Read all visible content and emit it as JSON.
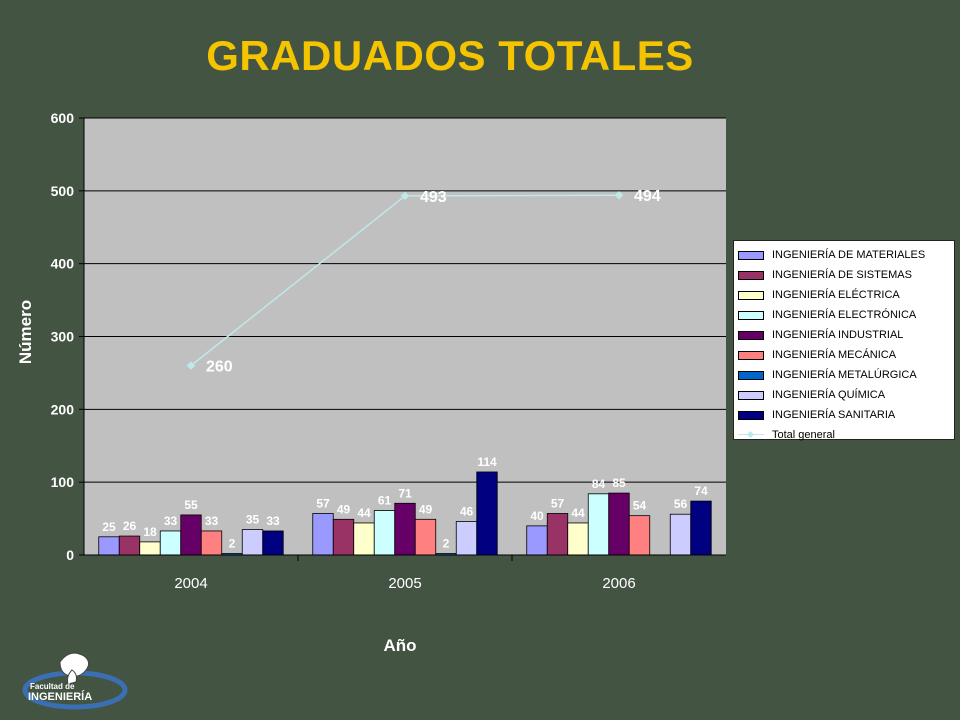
{
  "title": "GRADUADOS TOTALES",
  "chart_data": {
    "type": "bar",
    "categories": [
      "2004",
      "2005",
      "2006"
    ],
    "xlabel": "Año",
    "ylabel": "Número",
    "ylim": [
      0,
      600
    ],
    "yticks": [
      "0",
      "100",
      "200",
      "300",
      "400",
      "500",
      "600"
    ],
    "grid": true,
    "legend_position": "right",
    "series": [
      {
        "name": "INGENIERÍA DE MATERIALES",
        "color": "#9999ff",
        "values": [
          25,
          57,
          40
        ]
      },
      {
        "name": "INGENIERÍA DE SISTEMAS",
        "color": "#993366",
        "values": [
          26,
          49,
          57
        ]
      },
      {
        "name": "INGENIERÍA ELÉCTRICA",
        "color": "#ffffcc",
        "values": [
          18,
          44,
          44
        ]
      },
      {
        "name": "INGENIERÍA ELECTRÓNICA",
        "color": "#ccffff",
        "values": [
          33,
          61,
          84
        ]
      },
      {
        "name": "INGENIERÍA INDUSTRIAL",
        "color": "#660066",
        "values": [
          55,
          71,
          85
        ]
      },
      {
        "name": "INGENIERÍA MECÁNICA",
        "color": "#ff8080",
        "values": [
          33,
          49,
          54
        ]
      },
      {
        "name": "INGENIERÍA METALÚRGICA",
        "color": "#0066cc",
        "values": [
          2,
          2,
          null
        ]
      },
      {
        "name": "INGENIERÍA QUÍMICA",
        "color": "#ccccff",
        "values": [
          35,
          46,
          56
        ]
      },
      {
        "name": "INGENIERÍA SANITARIA",
        "color": "#000080",
        "values": [
          33,
          114,
          74
        ]
      }
    ],
    "line_series": {
      "name": "Total general",
      "color": "#bfe8ea",
      "values": [
        260,
        493,
        494
      ]
    }
  },
  "logo": {
    "line1": "Facultad de",
    "line2": "INGENIERÍA"
  }
}
